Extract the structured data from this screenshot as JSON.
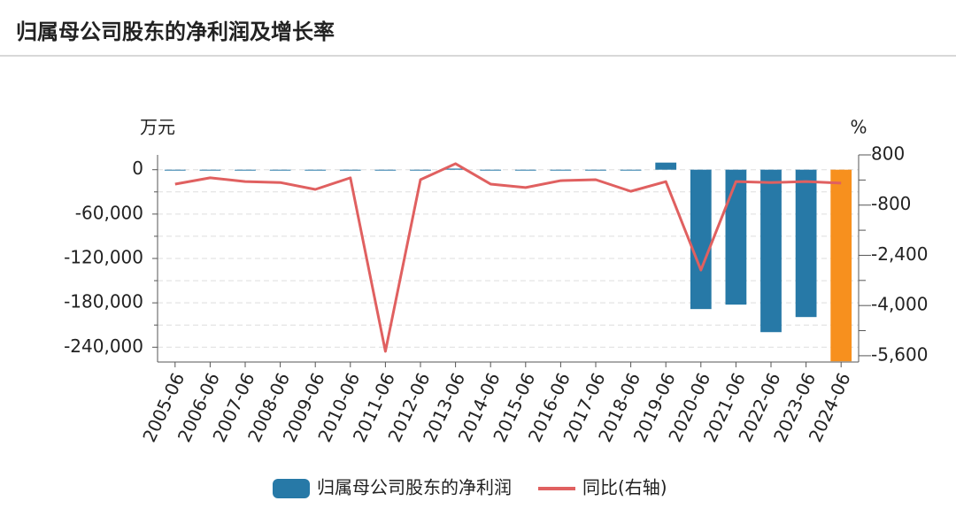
{
  "chart_data": {
    "type": "bar_line",
    "title": "归属母公司股东的净利润及增长率",
    "y_unit": "万元",
    "y2_unit": "%",
    "categories": [
      "2005-06",
      "2006-06",
      "2007-06",
      "2008-06",
      "2009-06",
      "2010-06",
      "2011-06",
      "2012-06",
      "2013-06",
      "2014-06",
      "2015-06",
      "2016-06",
      "2017-06",
      "2018-06",
      "2019-06",
      "2020-06",
      "2021-06",
      "2022-06",
      "2023-06",
      "2024-06"
    ],
    "series": [
      {
        "name": "归属母公司股东的净利润",
        "type": "bar",
        "color": "#2779a7",
        "colors": [
          "#2779a7",
          "#2779a7",
          "#2779a7",
          "#2779a7",
          "#2779a7",
          "#2779a7",
          "#2779a7",
          "#2779a7",
          "#2779a7",
          "#2779a7",
          "#2779a7",
          "#2779a7",
          "#2779a7",
          "#2779a7",
          "#2779a7",
          "#2779a7",
          "#2779a7",
          "#2779a7",
          "#2779a7",
          "#f7901e"
        ],
        "values": [
          -400,
          -500,
          -500,
          -400,
          -500,
          -400,
          -1200,
          -400,
          1500,
          -300,
          -400,
          -400,
          -400,
          -500,
          9600,
          -188400,
          -182400,
          -219600,
          -199200,
          -259000
        ]
      },
      {
        "name": "同比(右轴)",
        "type": "line",
        "axis": "y2",
        "color": "#e06060",
        "values": [
          -130,
          70,
          -50,
          -80,
          -300,
          70,
          -5460,
          10,
          520,
          -130,
          -240,
          -20,
          10,
          -360,
          -50,
          -2870,
          -50,
          -80,
          -50,
          -100
        ]
      }
    ],
    "ylim": [
      -260000,
      20000
    ],
    "yticks": [
      0,
      {
        "value": -60000,
        "label": "-60,000"
      },
      {
        "value": -120000,
        "label": "-120,000"
      },
      {
        "value": -180000,
        "label": "-180,000"
      },
      {
        "value": -240000,
        "label": "-240,000"
      }
    ],
    "minor_yticks": [
      -30000,
      -90000,
      -150000,
      -210000
    ],
    "y2lim": [
      -5800,
      800
    ],
    "y2ticks": [
      800,
      -800,
      {
        "value": -2400,
        "label": "-2,400"
      },
      {
        "value": -4000,
        "label": "-4,000"
      },
      {
        "value": -5600,
        "label": "-5,600"
      }
    ],
    "minor_y2ticks": [
      0,
      -1600,
      -3200,
      -4800
    ],
    "grid": true,
    "legend": "bottom"
  }
}
